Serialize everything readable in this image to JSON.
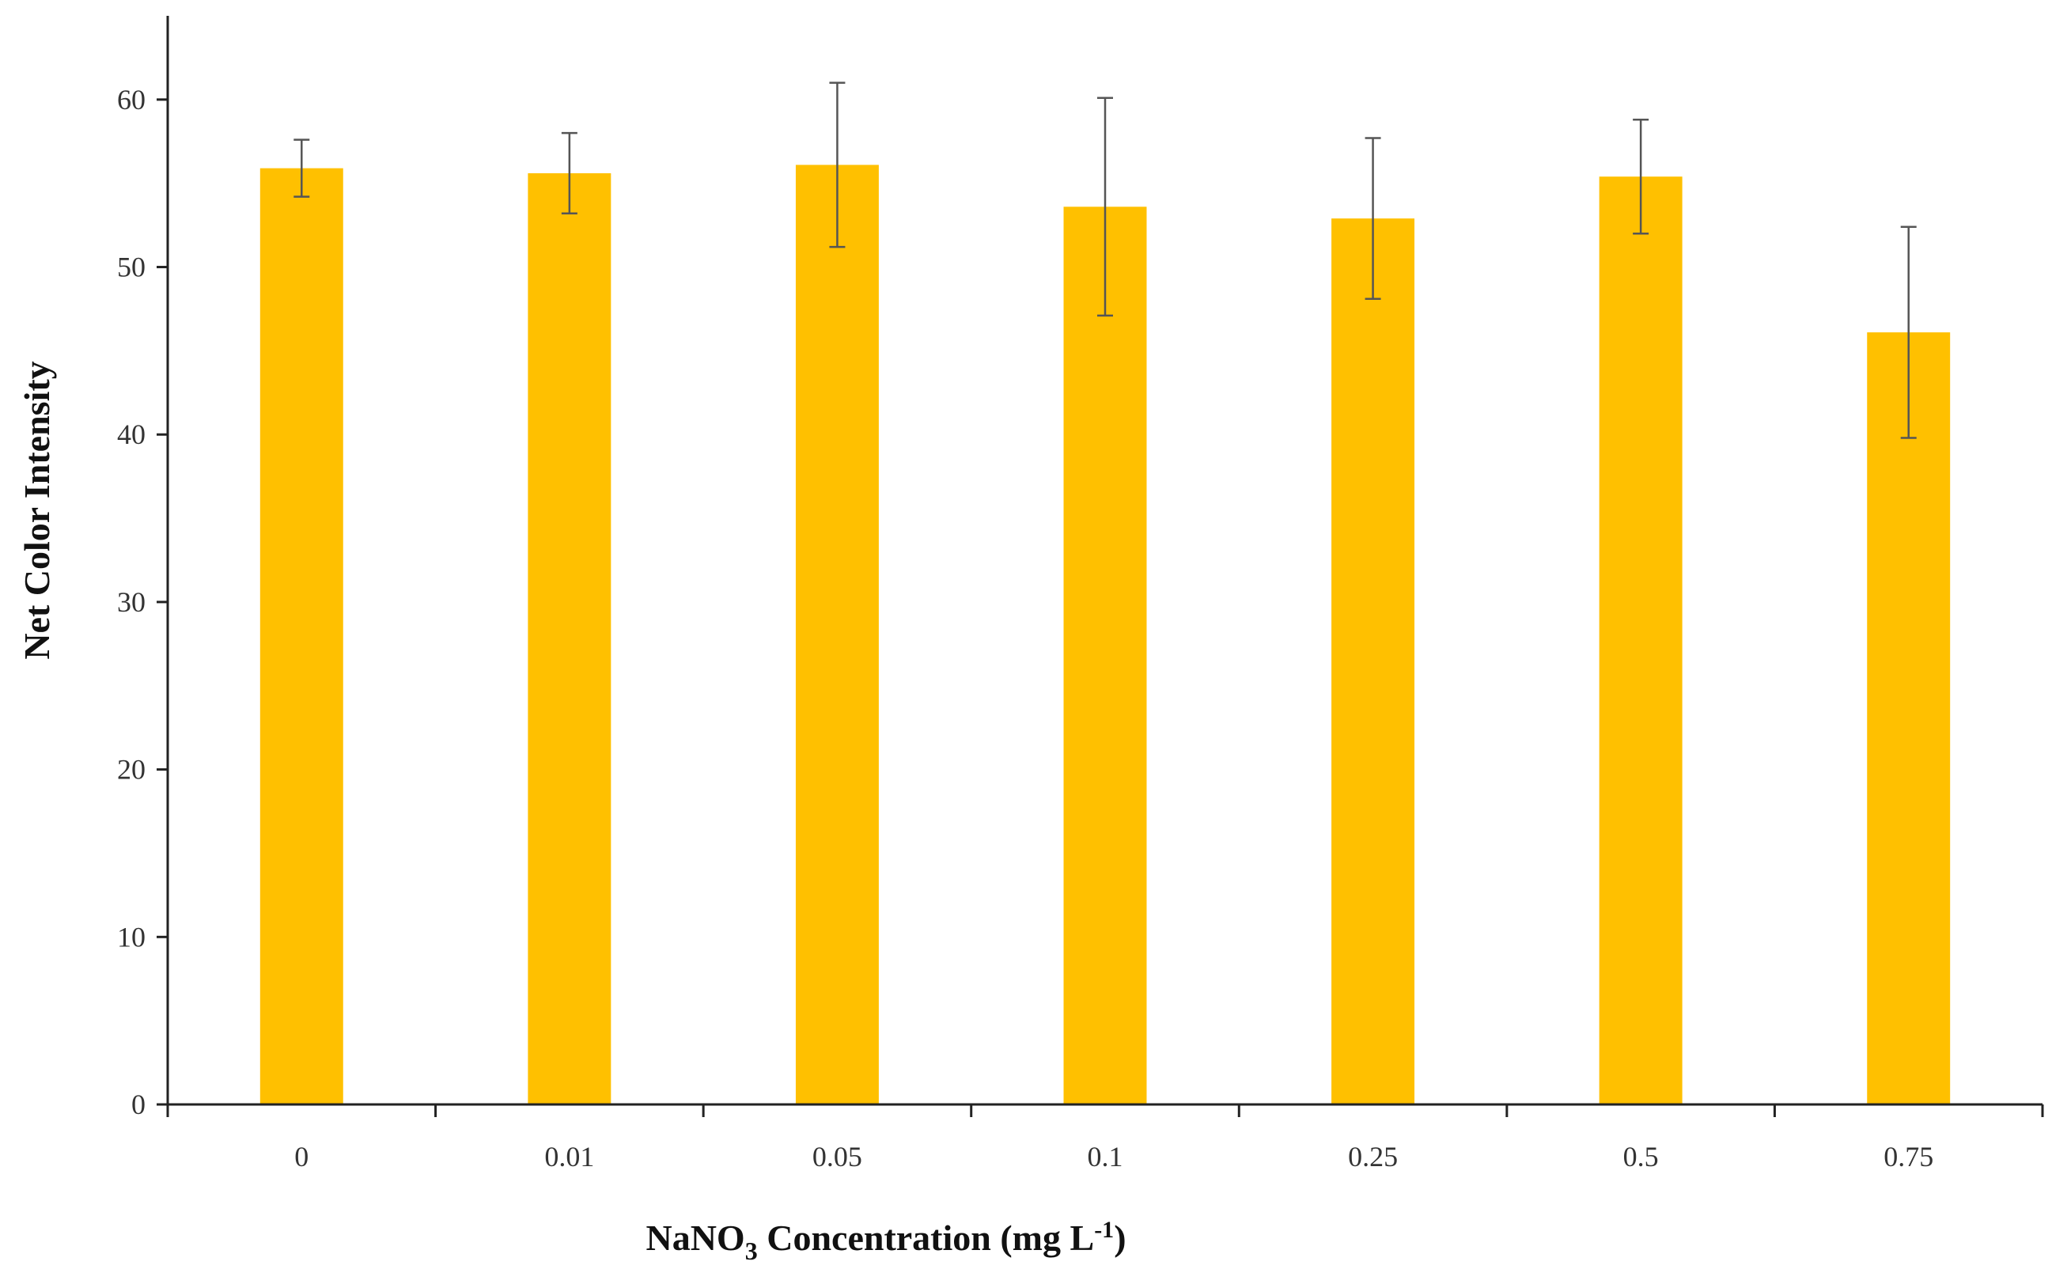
{
  "chart_data": {
    "type": "bar",
    "title": "",
    "xlabel": "NaNO3 Concentration (mg L-1)",
    "xlabel_parts": {
      "pre": "NaNO",
      "sub": "3",
      "mid": " Concentration (mg L",
      "sup": "-1",
      "post": ")"
    },
    "ylabel": "Net Color Intensity",
    "ylim": [
      0,
      65
    ],
    "yticks": [
      "0",
      "10",
      "20",
      "30",
      "40",
      "50",
      "60"
    ],
    "categories": [
      "0",
      "0.01",
      "0.05",
      "0.1",
      "0.25",
      "0.5",
      "0.75"
    ],
    "values": [
      55.9,
      55.6,
      56.1,
      53.6,
      52.9,
      55.4,
      46.1
    ],
    "errors": [
      1.7,
      2.4,
      4.9,
      6.5,
      4.8,
      3.4,
      6.3
    ],
    "bar_color": "#FFC000",
    "error_bar_color": "#555555",
    "axis_color": "#222222",
    "grid": false,
    "legend": "none"
  }
}
